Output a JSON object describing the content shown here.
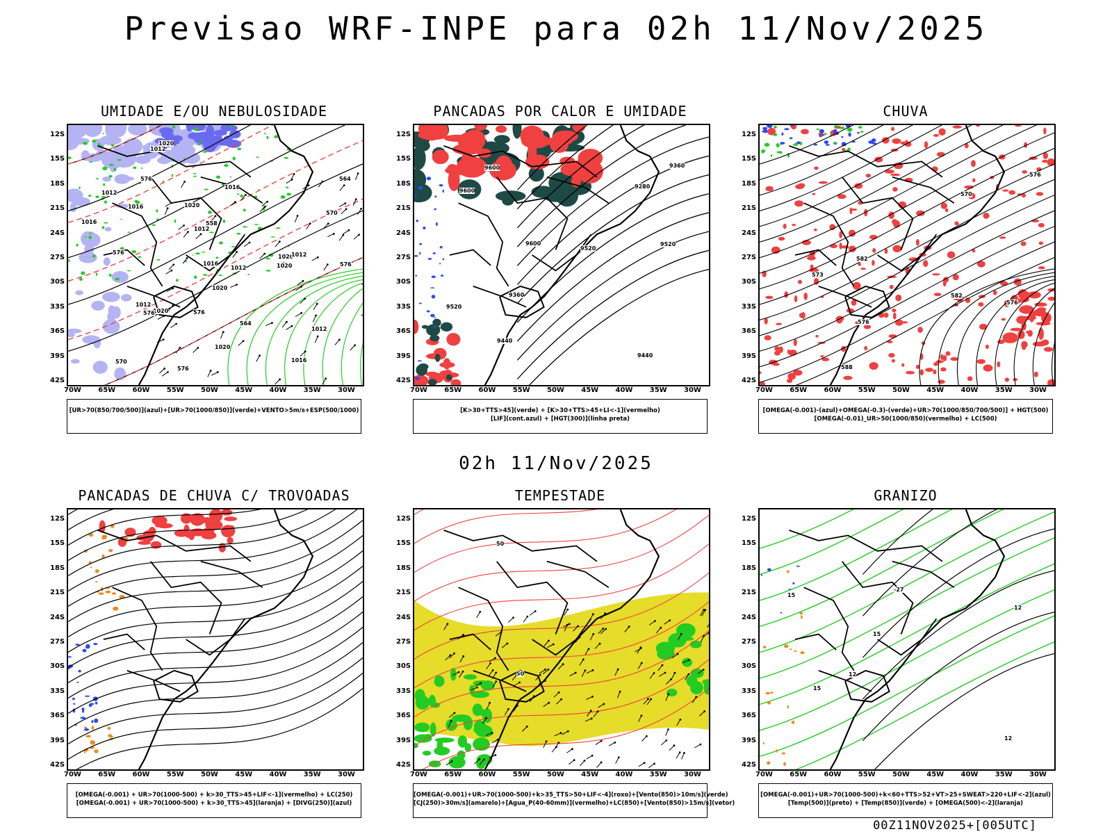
{
  "title": "Previsao WRF-INPE  para 02h 11/Nov/2025",
  "mid_title": "02h 11/Nov/2025",
  "footer": "00Z11NOV2025+[005UTC]",
  "lat_labels": [
    "12S",
    "15S",
    "18S",
    "21S",
    "24S",
    "27S",
    "30S",
    "33S",
    "36S",
    "39S",
    "42S"
  ],
  "lon_labels": [
    "70W",
    "65W",
    "60W",
    "55W",
    "50W",
    "45W",
    "40W",
    "35W",
    "30W"
  ],
  "panels": [
    {
      "title": "UMIDADE E/OU NEBULOSIDADE",
      "legend": [
        "[UR>70(850/700/500)](azul)+[UR>70(1000/850)](verde)+VENTO>5m/s+ESP(500/1000)"
      ],
      "contour_labels": [
        "1016",
        "1012",
        "1012",
        "1012",
        "1020",
        "1016",
        "1016",
        "1012",
        "1012",
        "1020",
        "1020",
        "1020",
        "1016",
        "1012",
        "1020",
        "1020",
        "1020",
        "1016",
        "1012",
        "576",
        "576",
        "576",
        "576",
        "576",
        "570",
        "570",
        "564",
        "564",
        "558",
        "576"
      ]
    },
    {
      "title": "PANCADAS POR CALOR E UMIDADE",
      "legend": [
        "[K>30+TTS>45](verde) + [K>30+TTS>45+LI<-1](vermelho)",
        "[LIF](cont.azul) + [HGT(300)](linha preta)"
      ],
      "contour_labels": [
        "9600",
        "9520",
        "9600",
        "9440",
        "9520",
        "9600",
        "9520",
        "9440",
        "9360",
        "9360",
        "9280"
      ]
    },
    {
      "title": "CHUVA",
      "legend": [
        "[OMEGA(-0.001)-(azul)+OMEGA(-0.3)-(verde)+UR>70(1000/850/700/500)] + HGT(500)",
        "[OMEGA(-0.01)_UR>50(1000/850)(vermelho) + LC(500)"
      ],
      "contour_labels": [
        "588",
        "582",
        "582",
        "576",
        "576",
        "570",
        "573",
        "576"
      ]
    },
    {
      "title": "PANCADAS DE CHUVA C/ TROVOADAS",
      "legend": [
        "[OMEGA(-0.001) + UR>70(1000-500) + k>30_TTS>45+LIF<-1](vermelho) + LC(250)",
        "[OMEGA(-0.001) + UR>70(1000-500) + k>30_TTS>45](laranja) + [DIVG(250)](azul)"
      ],
      "contour_labels": []
    },
    {
      "title": "TEMPESTADE",
      "legend": [
        "[OMEGA(-0.001)+UR>70(1000-500)+k>35_TTS>50+LIF<-4](roxo)+[Vento(850)>10m/s](verde)",
        "[CJ(250)>30m/s](amarelo)+[Agua_P(40-60mm)](vermelho)+LC(850)+[Vento(850)>15m/s](vetor)"
      ],
      "contour_labels": [
        "50",
        "50"
      ]
    },
    {
      "title": "GRANIZO",
      "legend": [
        "[OMEGA(-0.001)+UR>70(1000-500)+k<60+TTS>52+VT>25+SWEAT>220+LIF<-2](azul)",
        "[Temp(500)](preto) + [Temp(850)](verde) + [OMEGA(500)<-2](laranja)"
      ],
      "contour_labels": [
        "15",
        "15",
        "15",
        "12",
        "12",
        "-27",
        "12"
      ]
    }
  ],
  "colors": {
    "humidity_blue": "#6a6af0",
    "humidity_lavender": "#b4b4f4",
    "green": "#22cc22",
    "red": "#f04040",
    "dark_teal": "#1e4a46",
    "yellow": "#e6dc2a",
    "orange": "#f08a20",
    "blue": "#2a4af0"
  }
}
